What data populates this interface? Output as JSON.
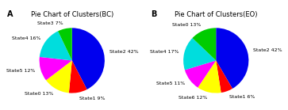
{
  "chart_data": [
    {
      "type": "pie",
      "title": "Pie Chart of Clusters(BC)",
      "annotations": [
        "A"
      ],
      "categories": [
        "State2 42%",
        "State1 9%",
        "State0 13%",
        "State5 12%",
        "State4 16%",
        "State3 7%"
      ],
      "values": [
        42,
        9,
        13,
        12,
        16,
        7
      ],
      "colors": [
        "#0000ee",
        "#ff0000",
        "#ffff00",
        "#ff00ff",
        "#00dddd",
        "#00cc00"
      ]
    },
    {
      "type": "pie",
      "title": "Pie Chart of Clusters(EO)",
      "annotations": [
        "B"
      ],
      "categories": [
        "State2 42%",
        "State1 6%",
        "State6 12%",
        "State5 11%",
        "State4 17%",
        "State0 13%"
      ],
      "values": [
        42,
        6,
        12,
        11,
        17,
        13
      ],
      "colors": [
        "#0000ee",
        "#ff0000",
        "#ffff00",
        "#ff00ff",
        "#00dddd",
        "#00cc00"
      ]
    }
  ]
}
